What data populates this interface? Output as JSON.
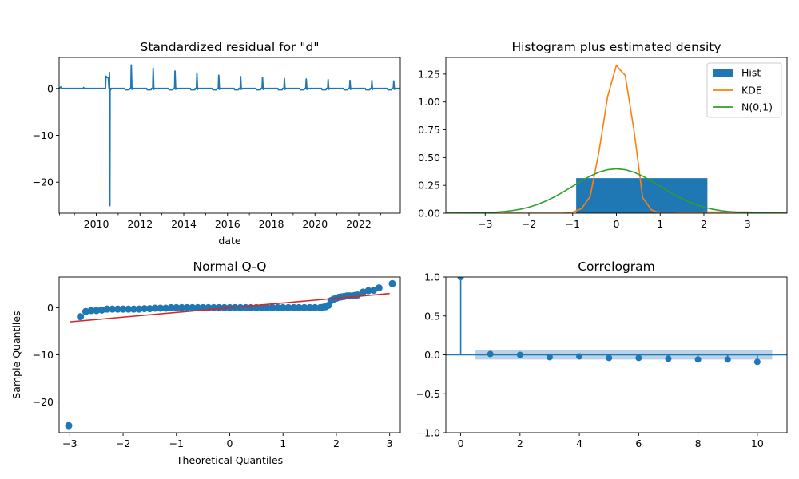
{
  "colors": {
    "blue": "#1f77b4",
    "orange": "#ff7f0e",
    "green": "#2ca02c",
    "red": "#d62728",
    "band": "#b9d2e8"
  },
  "chart_data": [
    {
      "id": "residual",
      "type": "line",
      "title": "Standardized residual for \"d\"",
      "xlabel": "date",
      "ylabel": "",
      "xlim": [
        2008.3,
        2023.9
      ],
      "ylim": [
        -26.6,
        6.6
      ],
      "xticks": [
        2010,
        2012,
        2014,
        2016,
        2018,
        2020,
        2022
      ],
      "xtick_labels": [
        "2010",
        "2012",
        "2014",
        "2016",
        "2018",
        "2020",
        "2022"
      ],
      "yticks": [
        0,
        -10,
        -20
      ],
      "ytick_labels": [
        "0",
        "−10",
        "−20"
      ],
      "series": [
        {
          "x": [
            2008.3,
            2008.38,
            2008.42,
            2008.47,
            2009.4,
            2009.42,
            2009.44,
            2010.3,
            2010.42,
            2010.44,
            2010.5,
            2010.55,
            2010.58,
            2010.6,
            2010.61,
            2010.62,
            2010.63,
            2010.64,
            2010.66,
            2010.68,
            2010.75,
            2011.3,
            2011.32,
            2011.5,
            2011.52,
            2011.58,
            2011.6,
            2011.63,
            2011.65,
            2011.7,
            2012.3,
            2012.33,
            2012.5,
            2012.52,
            2012.58,
            2012.6,
            2012.63,
            2012.65,
            2012.7,
            2013.3,
            2013.33,
            2013.5,
            2013.52,
            2013.58,
            2013.6,
            2013.63,
            2013.65,
            2013.7,
            2014.3,
            2014.33,
            2014.5,
            2014.52,
            2014.58,
            2014.6,
            2014.63,
            2014.65,
            2014.7,
            2015.3,
            2015.33,
            2015.5,
            2015.52,
            2015.58,
            2015.6,
            2015.63,
            2015.65,
            2015.7,
            2016.3,
            2016.33,
            2016.5,
            2016.52,
            2016.58,
            2016.6,
            2016.63,
            2016.65,
            2016.7,
            2017.3,
            2017.33,
            2017.5,
            2017.52,
            2017.58,
            2017.6,
            2017.63,
            2017.65,
            2017.7,
            2018.3,
            2018.33,
            2018.5,
            2018.52,
            2018.58,
            2018.6,
            2018.63,
            2018.65,
            2018.7,
            2019.3,
            2019.33,
            2019.5,
            2019.52,
            2019.58,
            2019.6,
            2019.63,
            2019.65,
            2019.7,
            2020.3,
            2020.33,
            2020.5,
            2020.52,
            2020.58,
            2020.6,
            2020.63,
            2020.65,
            2020.7,
            2021.3,
            2021.33,
            2021.5,
            2021.52,
            2021.58,
            2021.6,
            2021.63,
            2021.65,
            2021.7,
            2022.3,
            2022.33,
            2022.5,
            2022.52,
            2022.58,
            2022.6,
            2022.63,
            2022.65,
            2022.7,
            2023.3,
            2023.33,
            2023.5,
            2023.52,
            2023.58,
            2023.6,
            2023.63,
            2023.65,
            2023.9
          ],
          "y": [
            0,
            0.3,
            0,
            0,
            0,
            0.2,
            0,
            0,
            0,
            2.6,
            2.3,
            2.3,
            0,
            3.4,
            -0.2,
            -25,
            0,
            0,
            -0.3,
            0,
            0,
            0,
            -0.3,
            -0.3,
            0,
            0,
            5.0,
            -0.2,
            0,
            0,
            0,
            -0.3,
            -0.3,
            0,
            0,
            4.3,
            -0.2,
            0,
            0,
            0,
            -0.3,
            -0.3,
            0,
            0,
            3.7,
            -0.2,
            0,
            0,
            0,
            -0.3,
            -0.3,
            0,
            0,
            3.3,
            -0.2,
            0,
            0,
            0,
            -0.3,
            -0.3,
            0,
            0,
            2.8,
            -0.2,
            0,
            0,
            0,
            -0.3,
            -0.3,
            0,
            0,
            2.5,
            -0.2,
            0,
            0,
            0,
            -0.3,
            -0.3,
            0,
            0,
            2.3,
            -0.2,
            0,
            0,
            0,
            -0.3,
            -0.3,
            0,
            0,
            2.1,
            -0.2,
            0,
            0,
            0,
            -0.3,
            -0.3,
            0,
            0,
            2.0,
            -0.2,
            0,
            0,
            0,
            -0.3,
            -0.3,
            0,
            0,
            1.9,
            -0.2,
            0,
            0,
            0,
            -0.3,
            -0.3,
            0,
            0,
            1.7,
            -0.2,
            0,
            0,
            0,
            -0.3,
            -0.3,
            0,
            0,
            1.7,
            -0.2,
            0,
            0,
            0,
            -0.3,
            -0.3,
            0,
            0,
            1.6,
            -0.2,
            0,
            0
          ]
        }
      ]
    },
    {
      "id": "histogram",
      "type": "bar",
      "title": "Histogram plus estimated density",
      "xlabel": "",
      "ylabel": "",
      "xlim": [
        -3.9,
        3.9
      ],
      "ylim": [
        0,
        1.4
      ],
      "xticks": [
        -3,
        -2,
        -1,
        0,
        1,
        2,
        3
      ],
      "xtick_labels": [
        "−3",
        "−2",
        "−1",
        "0",
        "1",
        "2",
        "3"
      ],
      "yticks": [
        0,
        0.25,
        0.5,
        0.75,
        1.0,
        1.25
      ],
      "ytick_labels": [
        "0.00",
        "0.25",
        "0.50",
        "0.75",
        "1.00",
        "1.25"
      ],
      "legend_position": "top-right",
      "hist_bins": [
        {
          "x0": -0.92,
          "x1": 2.08,
          "height": 0.315
        }
      ],
      "series": [
        {
          "name": "Hist",
          "kind": "bar"
        },
        {
          "name": "KDE",
          "kind": "line",
          "x": [
            -3.9,
            -1.2,
            -1.0,
            -0.8,
            -0.6,
            -0.4,
            -0.2,
            0.0,
            0.1,
            0.2,
            0.4,
            0.6,
            0.8,
            1.0,
            1.3,
            2.0,
            3.0,
            3.9
          ],
          "y": [
            0,
            0,
            0.01,
            0.04,
            0.15,
            0.55,
            1.05,
            1.33,
            1.28,
            1.24,
            0.75,
            0.14,
            0.03,
            0,
            0,
            0.01,
            0.01,
            0
          ]
        },
        {
          "name": "N(0,1)",
          "kind": "line",
          "x": [
            -3.9,
            -3.6,
            -3.3,
            -3.0,
            -2.8,
            -2.6,
            -2.4,
            -2.2,
            -2.0,
            -1.8,
            -1.6,
            -1.4,
            -1.2,
            -1.0,
            -0.8,
            -0.6,
            -0.4,
            -0.2,
            0.0,
            0.2,
            0.4,
            0.6,
            0.8,
            1.0,
            1.2,
            1.4,
            1.6,
            1.8,
            2.0,
            2.2,
            2.4,
            2.6,
            2.8,
            3.0,
            3.3,
            3.6,
            3.9
          ],
          "y": [
            0.0002,
            0.0006,
            0.0017,
            0.0044,
            0.0079,
            0.0136,
            0.0224,
            0.0355,
            0.054,
            0.079,
            0.1109,
            0.1497,
            0.1942,
            0.242,
            0.2897,
            0.3332,
            0.3683,
            0.391,
            0.3989,
            0.391,
            0.3683,
            0.3332,
            0.2897,
            0.242,
            0.1942,
            0.1497,
            0.1109,
            0.079,
            0.054,
            0.0355,
            0.0224,
            0.0136,
            0.0079,
            0.0044,
            0.0017,
            0.0006,
            0.0002
          ]
        }
      ]
    },
    {
      "id": "qq",
      "type": "scatter",
      "title": "Normal Q-Q",
      "xlabel": "Theoretical Quantiles",
      "ylabel": "Sample Quantiles",
      "xlim": [
        -3.2,
        3.2
      ],
      "ylim": [
        -26.5,
        6.5
      ],
      "xticks": [
        -3,
        -2,
        -1,
        0,
        1,
        2,
        3
      ],
      "xtick_labels": [
        "−3",
        "−2",
        "−1",
        "0",
        "1",
        "2",
        "3"
      ],
      "yticks": [
        0,
        -10,
        -20
      ],
      "ytick_labels": [
        "0",
        "−10",
        "−20"
      ],
      "reference_line": {
        "x": [
          -3.0,
          3.0
        ],
        "y": [
          -3.0,
          3.0
        ]
      },
      "series": [
        {
          "x": [
            -3.02,
            -2.8,
            -2.7,
            -2.6,
            -2.5,
            -2.4,
            -2.3,
            -2.2,
            -2.1,
            -2.0,
            -1.9,
            -1.8,
            -1.7,
            -1.6,
            -1.5,
            -1.4,
            -1.3,
            -1.2,
            -1.1,
            -1.0,
            -0.9,
            -0.8,
            -0.7,
            -0.6,
            -0.5,
            -0.4,
            -0.3,
            -0.2,
            -0.1,
            0.0,
            0.1,
            0.2,
            0.3,
            0.4,
            0.5,
            0.6,
            0.7,
            0.8,
            0.9,
            1.0,
            1.1,
            1.2,
            1.3,
            1.4,
            1.5,
            1.6,
            1.7,
            1.75,
            1.8,
            1.85,
            1.9,
            1.95,
            2.0,
            2.05,
            2.1,
            2.15,
            2.2,
            2.25,
            2.3,
            2.35,
            2.4,
            2.5,
            2.6,
            2.7,
            2.8,
            3.05
          ],
          "y": [
            -25,
            -1.9,
            -0.8,
            -0.6,
            -0.6,
            -0.5,
            -0.3,
            -0.3,
            -0.3,
            -0.3,
            -0.3,
            -0.3,
            -0.3,
            -0.2,
            -0.2,
            -0.1,
            -0.1,
            -0.1,
            0,
            0,
            0,
            0,
            0,
            0,
            0,
            0,
            0,
            0,
            0,
            0,
            0,
            0,
            0,
            0,
            0,
            0,
            0,
            0,
            0,
            0,
            0,
            0,
            0,
            0,
            0,
            0,
            0,
            0.1,
            0.2,
            0.5,
            1.5,
            1.8,
            2.0,
            2.2,
            2.3,
            2.4,
            2.5,
            2.5,
            2.5,
            2.6,
            2.7,
            3.3,
            3.6,
            3.7,
            4.2,
            5.1
          ]
        }
      ]
    },
    {
      "id": "correlogram",
      "type": "bar",
      "title": "Correlogram",
      "xlabel": "",
      "ylabel": "",
      "xlim": [
        -0.5,
        11.0
      ],
      "ylim": [
        -1.0,
        1.0
      ],
      "xticks": [
        0,
        2,
        4,
        6,
        8,
        10
      ],
      "xtick_labels": [
        "0",
        "2",
        "4",
        "6",
        "8",
        "10"
      ],
      "yticks": [
        1.0,
        0.5,
        0.0,
        -0.5,
        -1.0
      ],
      "ytick_labels": [
        "1.0",
        "0.5",
        "0.0",
        "−0.5",
        "−1.0"
      ],
      "confidence_band": {
        "x0": 0.5,
        "x1": 10.5,
        "lower": -0.06,
        "upper": 0.06
      },
      "series": [
        {
          "x": [
            0,
            1,
            2,
            3,
            4,
            5,
            6,
            7,
            8,
            9,
            10
          ],
          "y": [
            1.0,
            0.01,
            0.0,
            -0.03,
            -0.02,
            -0.04,
            -0.04,
            -0.05,
            -0.06,
            -0.06,
            -0.09
          ]
        }
      ]
    }
  ]
}
